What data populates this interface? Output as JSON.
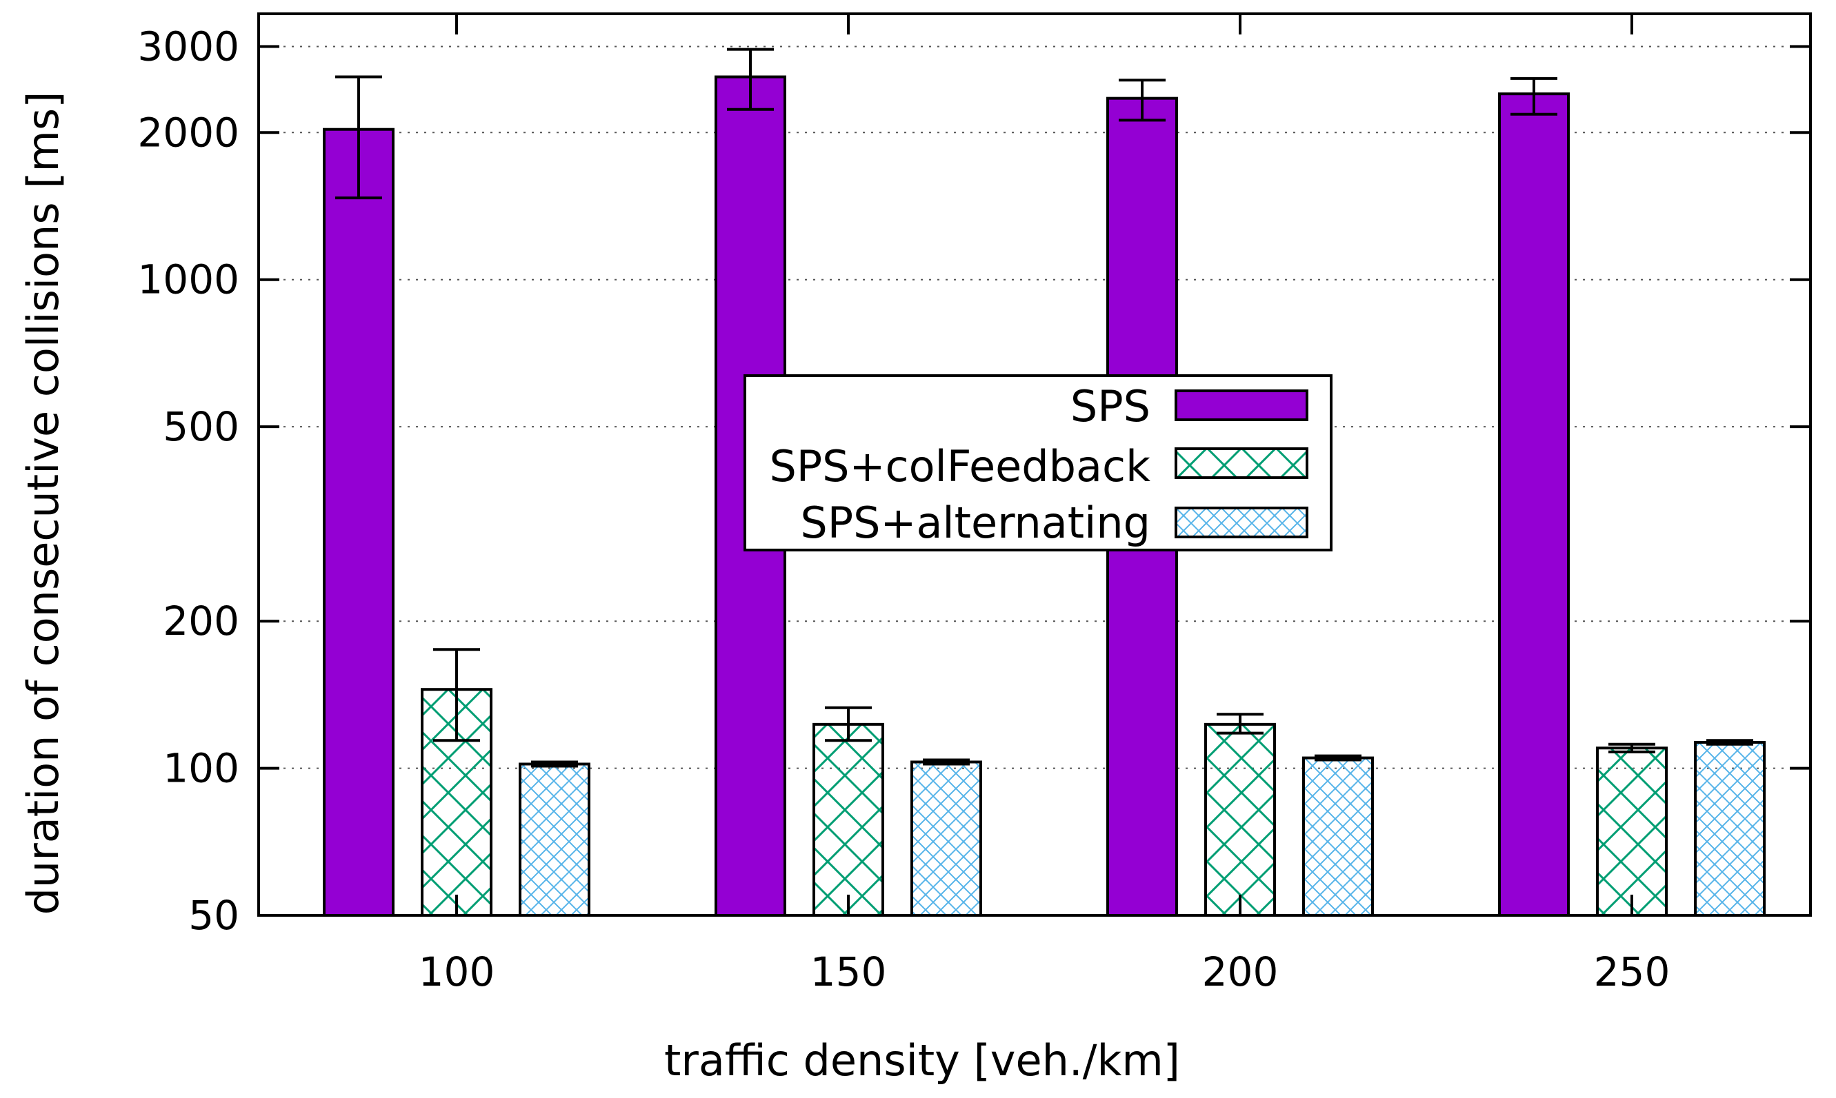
{
  "chart_data": {
    "type": "bar",
    "title": "",
    "xlabel": "traffic density [veh./km]",
    "ylabel": "duration of consecutive collisions [ms]",
    "yscale": "log",
    "ylim": [
      50,
      3500
    ],
    "yticks": [
      50,
      100,
      200,
      500,
      1000,
      2000,
      3000
    ],
    "ytick_labels": [
      "50",
      "100",
      "200",
      "500",
      "1000",
      "2000",
      "3000"
    ],
    "categories": [
      "100",
      "150",
      "200",
      "250"
    ],
    "grid": "dotted horizontal",
    "legend_position": "center",
    "series": [
      {
        "name": "SPS",
        "color": "#9400d3",
        "pattern": "solid",
        "values": [
          2030,
          2600,
          2350,
          2400
        ],
        "err_low": [
          1470,
          2230,
          2120,
          2180
        ],
        "err_high": [
          2600,
          2960,
          2560,
          2580
        ]
      },
      {
        "name": "SPS+colFeedback",
        "color": "#009e73",
        "pattern": "crosshatch",
        "values": [
          145,
          123,
          123,
          110
        ],
        "err_low": [
          114,
          114,
          118,
          108
        ],
        "err_high": [
          175,
          133,
          129,
          112
        ]
      },
      {
        "name": "SPS+alternating",
        "color": "#56b4e9",
        "pattern": "fine-crosshatch",
        "values": [
          102,
          103,
          105,
          113
        ],
        "err_low": [
          101,
          102,
          104,
          112
        ],
        "err_high": [
          103,
          104,
          106,
          114
        ]
      }
    ]
  }
}
